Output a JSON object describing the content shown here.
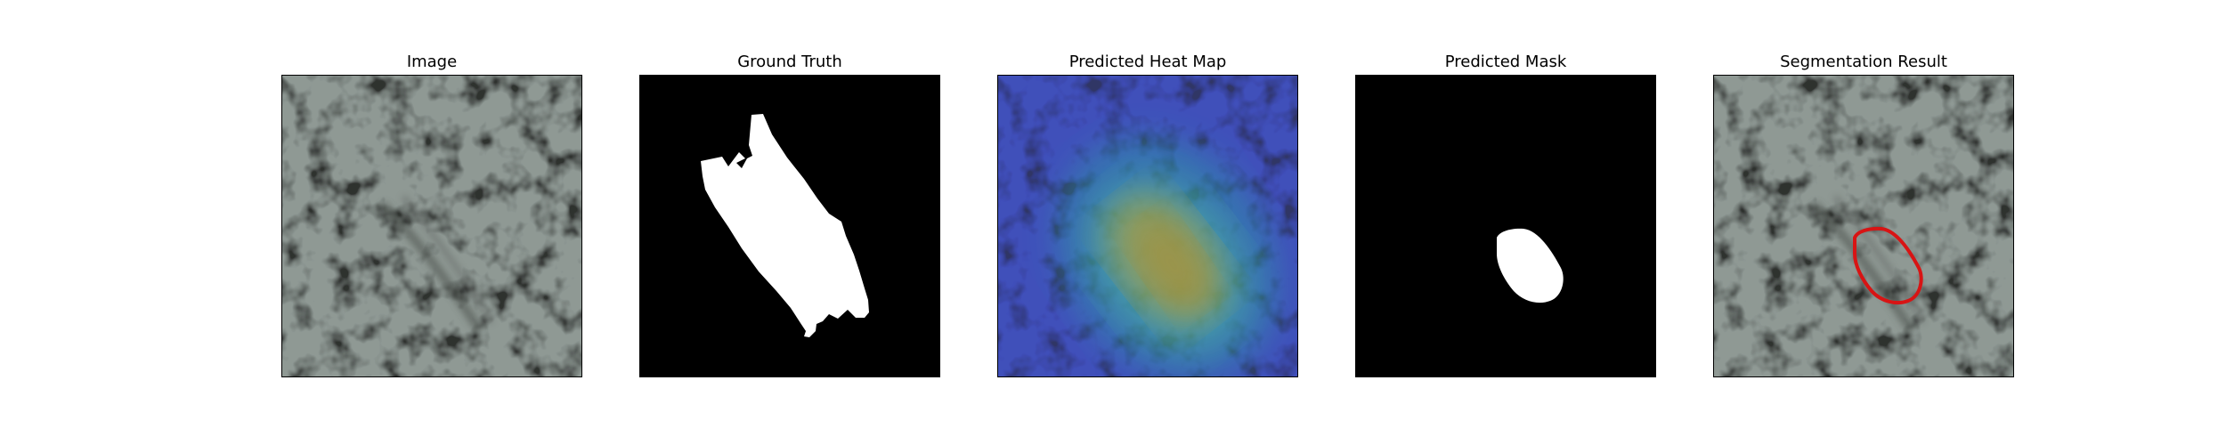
{
  "figure": {
    "panels": [
      {
        "title": "Image"
      },
      {
        "title": "Ground Truth"
      },
      {
        "title": "Predicted Heat Map"
      },
      {
        "title": "Predicted Mask"
      },
      {
        "title": "Segmentation Result"
      }
    ]
  },
  "colors": {
    "background": "#ffffff",
    "frame": "#000000",
    "texture_light": "#8a9490",
    "texture_dark": "#3a3c3a",
    "mask_foreground": "#ffffff",
    "mask_background": "#000000",
    "heat_low": "#3a3fbf",
    "heat_mid": "#2aa7a0",
    "heat_high": "#c9b43a",
    "contour": "#d81414"
  }
}
